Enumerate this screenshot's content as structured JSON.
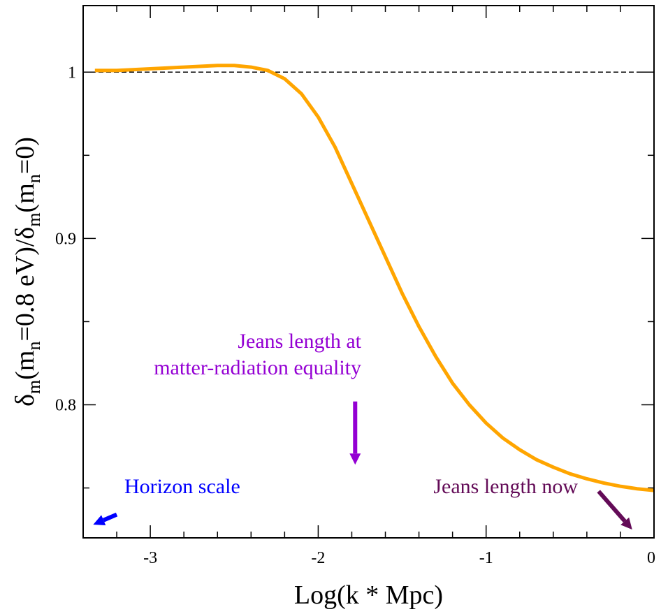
{
  "chart_data": {
    "type": "line",
    "xlabel": "Log(k * Mpc)",
    "ylabel": {
      "parts": [
        "δ",
        "m",
        "(m",
        "n",
        "=0.8 eV)/δ",
        "m",
        "(m",
        "n",
        "=0)"
      ],
      "subscript": [
        false,
        true,
        false,
        true,
        false,
        true,
        false,
        true,
        false
      ]
    },
    "xlim": [
      -3.4,
      0
    ],
    "ylim": [
      0.72,
      1.04
    ],
    "x_ticks": [
      -3,
      -2,
      -1,
      0
    ],
    "x_tick_labels": [
      "-3",
      "-2",
      "-1",
      "0"
    ],
    "x_minor_step": 0.2,
    "y_ticks": [
      0.8,
      0.9,
      1.0
    ],
    "y_tick_labels": [
      "0.8",
      "0.9",
      "1"
    ],
    "y_minor_step": 0.05,
    "grid": false,
    "reference_line": {
      "y": 1.0,
      "style": "dashed",
      "color": "#000000"
    },
    "series": [
      {
        "color": "#FFA500",
        "x": [
          -3.33,
          -3.2,
          -3.0,
          -2.8,
          -2.6,
          -2.5,
          -2.4,
          -2.3,
          -2.2,
          -2.1,
          -2.0,
          -1.9,
          -1.8,
          -1.7,
          -1.6,
          -1.5,
          -1.4,
          -1.3,
          -1.2,
          -1.1,
          -1.0,
          -0.9,
          -0.8,
          -0.7,
          -0.6,
          -0.5,
          -0.4,
          -0.3,
          -0.2,
          -0.1,
          0.0
        ],
        "y": [
          1.001,
          1.001,
          1.002,
          1.003,
          1.004,
          1.004,
          1.003,
          1.001,
          0.996,
          0.987,
          0.973,
          0.955,
          0.933,
          0.911,
          0.889,
          0.867,
          0.847,
          0.829,
          0.813,
          0.8,
          0.789,
          0.78,
          0.773,
          0.767,
          0.7625,
          0.7585,
          0.7555,
          0.753,
          0.751,
          0.7495,
          0.7485
        ]
      }
    ],
    "annotations": [
      {
        "lines": [
          "Jeans length at",
          "matter-radiation equality"
        ],
        "color": "#9400D3",
        "arrow": {
          "from": [
            -1.78,
            0.802
          ],
          "to": [
            -1.78,
            0.764
          ]
        }
      },
      {
        "lines": [
          "Horizon scale"
        ],
        "color": "#0000FF",
        "arrow": {
          "from": [
            -3.2,
            0.734
          ],
          "to": [
            -3.34,
            0.728
          ]
        }
      },
      {
        "lines": [
          "Jeans length now"
        ],
        "color": "#630B57",
        "arrow": {
          "from": [
            -0.33,
            0.748
          ],
          "to": [
            -0.13,
            0.725
          ]
        }
      }
    ]
  }
}
